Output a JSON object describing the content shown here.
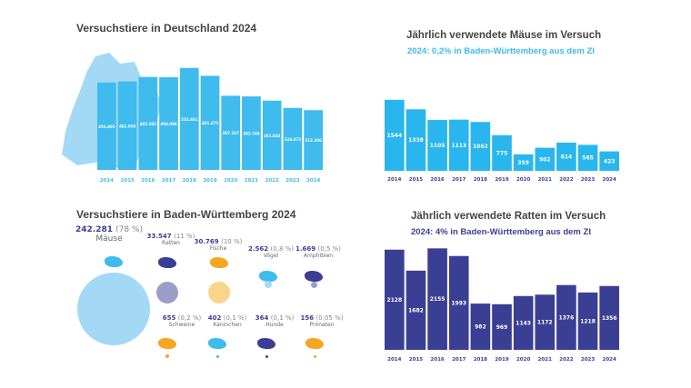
{
  "colors": {
    "light_blue": "#3fbbee",
    "map_blue": "#a3d9f5",
    "navy": "#3b3f94",
    "orange": "#f5a623",
    "lavender": "#9d9ec8",
    "sand": "#f9d48a"
  },
  "chart_data": [
    {
      "type": "bar",
      "title": "Versuchstiere in Deutschland 2024",
      "categories": [
        "2014",
        "2015",
        "2016",
        "2017",
        "2018",
        "2019",
        "2020",
        "2021",
        "2022",
        "2023",
        "2024"
      ],
      "values": [
        456605,
        462038,
        485502,
        484086,
        532681,
        491475,
        387337,
        383749,
        361843,
        324072,
        312206
      ],
      "labels": [
        "456.605",
        "462.038",
        "485.502",
        "484.086",
        "532.681",
        "491.475",
        "387.337",
        "383.749",
        "361.843",
        "324.072",
        "312.206"
      ],
      "ylim": [
        0,
        560000
      ]
    },
    {
      "type": "bar",
      "title": "Jährlich verwendete Mäuse im Versuch",
      "subtitle": "2024: 0,2% in Baden-Württemberg aus dem ZI",
      "categories": [
        "2014",
        "2015",
        "2016",
        "2017",
        "2018",
        "2019",
        "2020",
        "2021",
        "2022",
        "2023",
        "2024"
      ],
      "values": [
        1544,
        1338,
        1105,
        1113,
        1062,
        775,
        359,
        502,
        614,
        565,
        423
      ],
      "ylim": [
        0,
        1600
      ]
    },
    {
      "type": "bar",
      "title": "Jährlich verwendete Ratten im Versuch",
      "subtitle": "2024: 4% in Baden-Württemberg aus dem ZI",
      "categories": [
        "2014",
        "2015",
        "2016",
        "2017",
        "2018",
        "2019",
        "2020",
        "2021",
        "2022",
        "2023",
        "2024"
      ],
      "values": [
        2128,
        1682,
        2155,
        1993,
        982,
        969,
        1143,
        1172,
        1376,
        1218,
        1356
      ],
      "ylim": [
        0,
        2200
      ]
    }
  ],
  "bw": {
    "title": "Versuchstiere in Baden-Württemberg 2024",
    "animals": [
      {
        "num": "242.281",
        "pct": "(78 %)",
        "name": "Mäuse"
      },
      {
        "num": "33.547",
        "pct": "(11 %)",
        "name": "Ratten"
      },
      {
        "num": "30.769",
        "pct": "(10 %)",
        "name": "Fische"
      },
      {
        "num": "2.562",
        "pct": "(0,8 %)",
        "name": "Vögel"
      },
      {
        "num": "1.669",
        "pct": "(0,5 %)",
        "name": "Amphibien"
      },
      {
        "num": "655",
        "pct": "(0,2 %)",
        "name": "Schweine"
      },
      {
        "num": "402",
        "pct": "(0,1 %)",
        "name": "Kaninchen"
      },
      {
        "num": "364",
        "pct": "(0,1 %)",
        "name": "Hunde"
      },
      {
        "num": "156",
        "pct": "(0,05 %)",
        "name": "Primaten"
      }
    ]
  }
}
